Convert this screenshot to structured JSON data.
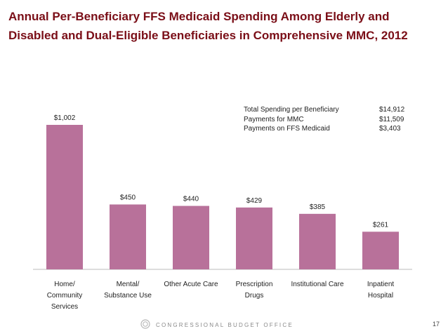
{
  "title": "Annual Per-Beneficiary FFS Medicaid Spending Among Elderly and Disabled and Dual-Eligible Beneficiaries in Comprehensive MMC, 2012",
  "summary": [
    {
      "label": "Total Spending per Beneficiary",
      "value": "$14,912"
    },
    {
      "label": "Payments for MMC",
      "value": "$11,509"
    },
    {
      "label": "Payments on FFS Medicaid",
      "value": "$3,403"
    }
  ],
  "chart_data": {
    "type": "bar",
    "title": "Annual Per-Beneficiary FFS Medicaid Spending Among Elderly and Disabled and Dual-Eligible Beneficiaries in Comprehensive MMC, 2012",
    "categories": [
      "Home/\nCommunity\nServices",
      "Mental/\nSubstance Use",
      "Other Acute Care",
      "Prescription\nDrugs",
      "Institutional Care",
      "Inpatient\nHospital"
    ],
    "values": [
      1002,
      450,
      440,
      429,
      385,
      261
    ],
    "data_labels": [
      "$1,002",
      "$450",
      "$440",
      "$429",
      "$385",
      "$261"
    ],
    "bar_color": "#b8719a",
    "xlabel": "",
    "ylabel": "",
    "ylim": [
      0,
      1120
    ],
    "grid": false
  },
  "footer": {
    "agency": "CONGRESSIONAL BUDGET OFFICE",
    "page": "17"
  }
}
